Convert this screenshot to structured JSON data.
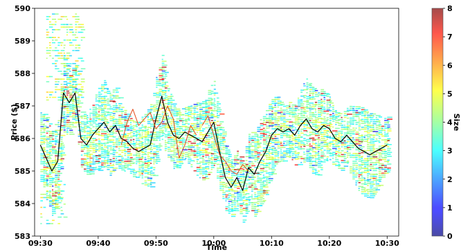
{
  "chart_data": {
    "type": "heatmap",
    "title": "",
    "xlabel": "Time",
    "ylabel": "Price ($)",
    "colorbar_label": "Size",
    "x_ticks": [
      "09:30",
      "09:40",
      "09:50",
      "10:00",
      "10:10",
      "10:20",
      "10:30"
    ],
    "x_tick_minutes": [
      0,
      10,
      20,
      30,
      40,
      50,
      60
    ],
    "xlim_minutes": [
      -1,
      62
    ],
    "ylim": [
      583,
      590
    ],
    "y_ticks": [
      "583",
      "584",
      "585",
      "586",
      "587",
      "588",
      "589",
      "590"
    ],
    "colorbar_ticks": [
      "0",
      "1",
      "2",
      "3",
      "4",
      "5",
      "6",
      "7",
      "8"
    ],
    "colorbar_range": [
      0,
      8
    ],
    "colormap": "jet",
    "grid": false,
    "series": [
      {
        "kind": "line",
        "color": "#000000",
        "x_minutes": [
          0,
          1,
          2,
          3,
          4,
          5,
          6,
          7,
          8,
          9,
          10,
          11,
          12,
          13,
          14,
          15,
          16,
          17,
          18,
          19,
          20,
          21,
          22,
          23,
          24,
          25,
          26,
          27,
          28,
          29,
          30,
          31,
          32,
          33,
          34,
          35,
          36,
          37,
          38,
          39,
          40,
          41,
          42,
          43,
          44,
          45,
          46,
          47,
          48,
          49,
          50,
          51,
          52,
          53,
          54,
          55,
          56,
          57,
          58,
          59,
          60
        ],
        "values": [
          585.8,
          585.4,
          585.0,
          585.3,
          587.4,
          587.1,
          587.4,
          586.0,
          585.8,
          586.1,
          586.3,
          586.5,
          586.2,
          586.4,
          586.0,
          585.9,
          585.7,
          585.6,
          585.7,
          585.8,
          586.6,
          587.3,
          586.5,
          586.1,
          586.0,
          586.2,
          586.1,
          586.0,
          585.9,
          586.2,
          586.5,
          585.6,
          584.8,
          584.5,
          584.8,
          584.4,
          585.1,
          584.9,
          585.3,
          585.6,
          586.1,
          586.3,
          586.2,
          586.3,
          586.1,
          586.4,
          586.6,
          586.3,
          586.2,
          586.4,
          586.3,
          586.0,
          585.9,
          586.1,
          585.9,
          585.7,
          585.6,
          585.5,
          585.6,
          585.7,
          585.8
        ]
      },
      {
        "kind": "line",
        "color": "#e34a1a",
        "x_minutes": [
          14,
          15,
          16,
          17,
          18,
          19,
          20,
          21,
          22,
          23,
          24,
          25,
          26,
          27
        ],
        "values": [
          585.8,
          586.5,
          586.9,
          586.4,
          586.6,
          586.8,
          586.3,
          586.5,
          587.0,
          586.6,
          585.4,
          585.8,
          586.4,
          586.1
        ]
      },
      {
        "kind": "line",
        "color": "#e34a1a",
        "x_minutes": [
          28,
          29,
          30,
          31,
          32,
          33,
          34,
          35,
          36
        ],
        "values": [
          586.4,
          586.7,
          586.1,
          585.5,
          585.3,
          585.0,
          584.9,
          585.2,
          585.0
        ]
      }
    ]
  }
}
